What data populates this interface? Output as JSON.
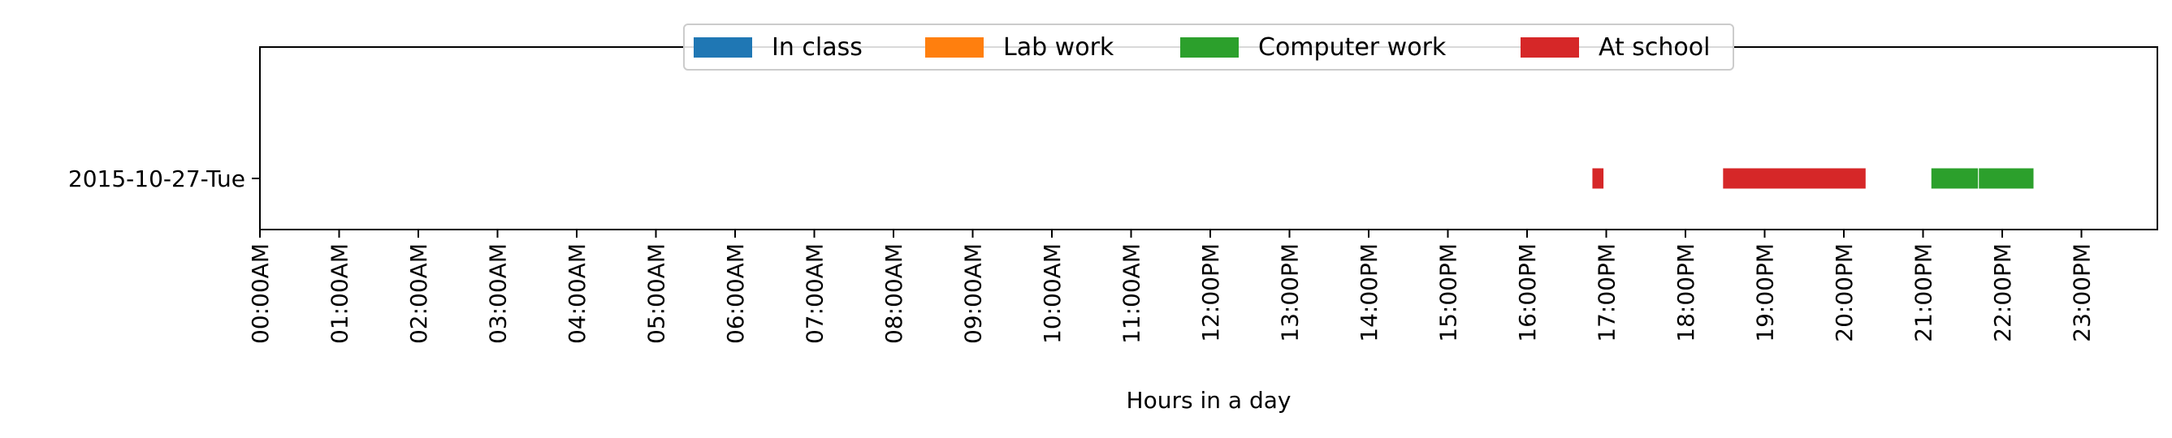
{
  "chart_data": {
    "type": "bar",
    "orientation": "horizontal-timeline",
    "xlabel": "Hours in a day",
    "ylabel": "",
    "xlim": [
      0,
      24
    ],
    "x_ticks": [
      0,
      1,
      2,
      3,
      4,
      5,
      6,
      7,
      8,
      9,
      10,
      11,
      12,
      13,
      14,
      15,
      16,
      17,
      18,
      19,
      20,
      21,
      22,
      23
    ],
    "x_tick_labels": [
      "00:00AM",
      "01:00AM",
      "02:00AM",
      "03:00AM",
      "04:00AM",
      "05:00AM",
      "06:00AM",
      "07:00AM",
      "08:00AM",
      "09:00AM",
      "10:00AM",
      "11:00AM",
      "12:00PM",
      "13:00PM",
      "14:00PM",
      "15:00PM",
      "16:00PM",
      "17:00PM",
      "18:00PM",
      "19:00PM",
      "20:00PM",
      "21:00PM",
      "22:00PM",
      "23:00PM"
    ],
    "categories": [
      "2015-10-27-Tue"
    ],
    "legend_position": "top-center",
    "grid": false,
    "series": [
      {
        "name": "In class",
        "color": "#1f77b4",
        "intervals": []
      },
      {
        "name": "Lab work",
        "color": "#ff7f0e",
        "intervals": []
      },
      {
        "name": "Computer work",
        "color": "#2ca02c",
        "intervals": [
          {
            "category": "2015-10-27-Tue",
            "start": 21.1,
            "end": 21.7
          },
          {
            "category": "2015-10-27-Tue",
            "start": 21.7,
            "end": 22.4
          }
        ]
      },
      {
        "name": "At school",
        "color": "#d62728",
        "intervals": [
          {
            "category": "2015-10-27-Tue",
            "start": 16.82,
            "end": 16.97
          },
          {
            "category": "2015-10-27-Tue",
            "start": 18.47,
            "end": 20.28
          }
        ]
      }
    ]
  }
}
